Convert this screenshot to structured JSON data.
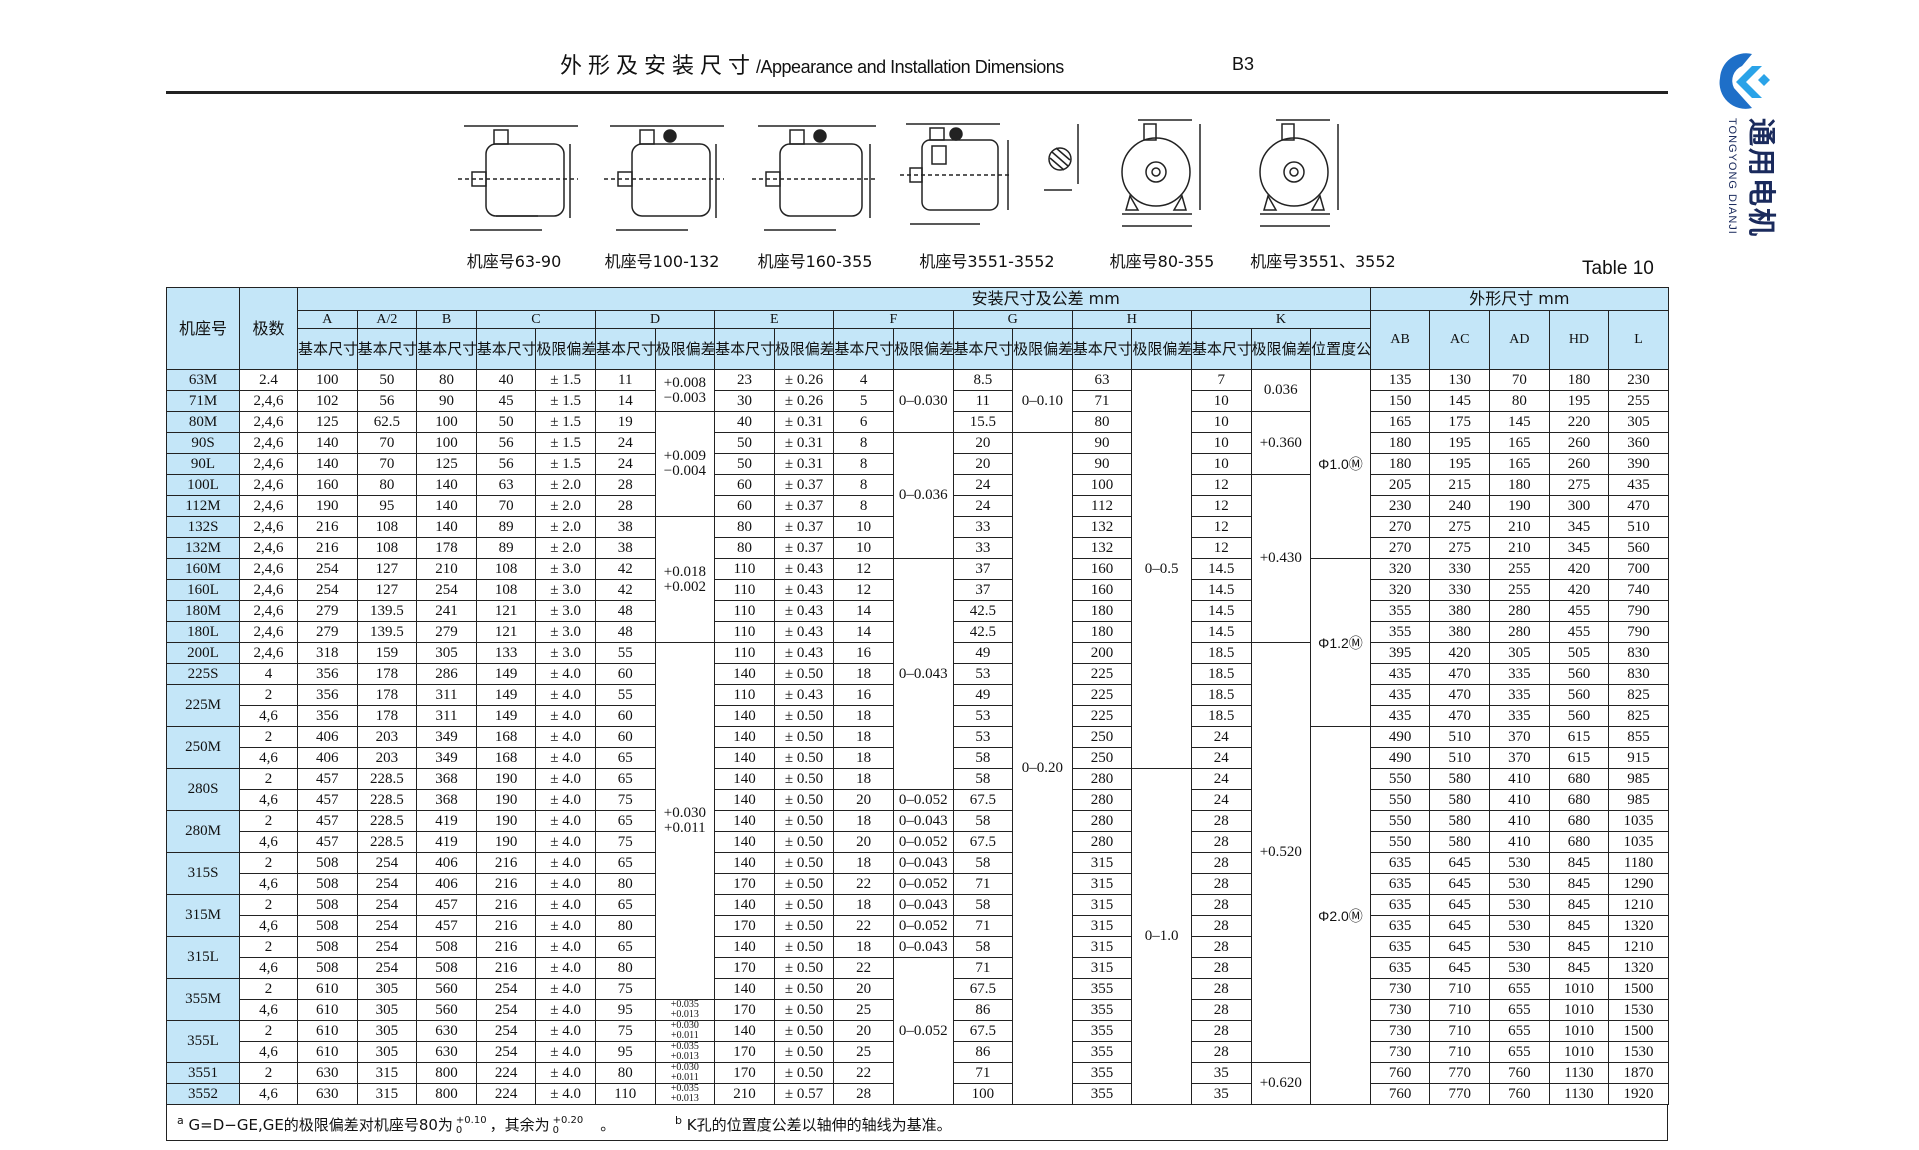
{
  "header": {
    "title_cn": "外形及安装尺寸",
    "title_sep": "/",
    "title_en": "Appearance and Installation Dimensions",
    "mounting": "B3",
    "table_number": "Table 10"
  },
  "logo": {
    "name_cn": "通用电机",
    "name_en": "TONGYONG DIANJI",
    "color": "#1e88d6",
    "icon": "tongyong-logo-icon"
  },
  "drawings": [
    {
      "label": "机座号63-90",
      "view": "side"
    },
    {
      "label": "机座号100-132",
      "view": "side"
    },
    {
      "label": "机座号160-355",
      "view": "side"
    },
    {
      "label": "机座号3551-3552",
      "view": "side"
    },
    {
      "label": "",
      "view": "shaft-section"
    },
    {
      "label": "机座号80-355",
      "view": "front"
    },
    {
      "label": "机座号3551、3552",
      "view": "front"
    }
  ],
  "table": {
    "colors": {
      "header_bg": "#c4e6f8",
      "border": "#222222"
    },
    "col_frame": "机座号",
    "col_poles": "极数",
    "group_install": "安装尺寸及公差  mm",
    "group_outline": "外形尺寸  mm",
    "dims": [
      "A",
      "A/2",
      "B",
      "C",
      "D",
      "E",
      "F",
      "G",
      "H",
      "K"
    ],
    "basic": "基本尺寸",
    "tolerance": "极限偏差",
    "position_tol": "位置度公差",
    "outline_cols": [
      "AB",
      "AC",
      "AD",
      "HD",
      "L"
    ],
    "frames": [
      {
        "label": "63M",
        "span": 1
      },
      {
        "label": "71M",
        "span": 1
      },
      {
        "label": "80M",
        "span": 1
      },
      {
        "label": "90S",
        "span": 1
      },
      {
        "label": "90L",
        "span": 1
      },
      {
        "label": "100L",
        "span": 1
      },
      {
        "label": "112M",
        "span": 1
      },
      {
        "label": "132S",
        "span": 1
      },
      {
        "label": "132M",
        "span": 1
      },
      {
        "label": "160M",
        "span": 1
      },
      {
        "label": "160L",
        "span": 1
      },
      {
        "label": "180M",
        "span": 1
      },
      {
        "label": "180L",
        "span": 1
      },
      {
        "label": "200L",
        "span": 1
      },
      {
        "label": "225S",
        "span": 1
      },
      {
        "label": "225M",
        "span": 2
      },
      {
        "label": "250M",
        "span": 2
      },
      {
        "label": "280S",
        "span": 2
      },
      {
        "label": "280M",
        "span": 2
      },
      {
        "label": "315S",
        "span": 2
      },
      {
        "label": "315M",
        "span": 2
      },
      {
        "label": "315L",
        "span": 2
      },
      {
        "label": "355M",
        "span": 2
      },
      {
        "label": "355L",
        "span": 2
      },
      {
        "label": "3551",
        "span": 1
      },
      {
        "label": "3552",
        "span": 1
      }
    ],
    "row_fields": [
      "poles",
      "A",
      "A/2",
      "B",
      "C",
      "C_tol",
      "D",
      "E",
      "E_tol",
      "F",
      "G",
      "H",
      "K",
      "AB",
      "AC",
      "AD",
      "HD",
      "L"
    ],
    "rows": [
      [
        "2.4",
        "100",
        "50",
        "80",
        "40",
        "± 1.5",
        "11",
        "23",
        "± 0.26",
        "4",
        "8.5",
        "63",
        "7",
        "135",
        "130",
        "70",
        "180",
        "230"
      ],
      [
        "2,4,6",
        "102",
        "56",
        "90",
        "45",
        "± 1.5",
        "14",
        "30",
        "± 0.26",
        "5",
        "11",
        "71",
        "10",
        "150",
        "145",
        "80",
        "195",
        "255"
      ],
      [
        "2,4,6",
        "125",
        "62.5",
        "100",
        "50",
        "± 1.5",
        "19",
        "40",
        "± 0.31",
        "6",
        "15.5",
        "80",
        "10",
        "165",
        "175",
        "145",
        "220",
        "305"
      ],
      [
        "2,4,6",
        "140",
        "70",
        "100",
        "56",
        "± 1.5",
        "24",
        "50",
        "± 0.31",
        "8",
        "20",
        "90",
        "10",
        "180",
        "195",
        "165",
        "260",
        "360"
      ],
      [
        "2,4,6",
        "140",
        "70",
        "125",
        "56",
        "± 1.5",
        "24",
        "50",
        "± 0.31",
        "8",
        "20",
        "90",
        "10",
        "180",
        "195",
        "165",
        "260",
        "390"
      ],
      [
        "2,4,6",
        "160",
        "80",
        "140",
        "63",
        "± 2.0",
        "28",
        "60",
        "± 0.37",
        "8",
        "24",
        "100",
        "12",
        "205",
        "215",
        "180",
        "275",
        "435"
      ],
      [
        "2,4,6",
        "190",
        "95",
        "140",
        "70",
        "± 2.0",
        "28",
        "60",
        "± 0.37",
        "8",
        "24",
        "112",
        "12",
        "230",
        "240",
        "190",
        "300",
        "470"
      ],
      [
        "2,4,6",
        "216",
        "108",
        "140",
        "89",
        "± 2.0",
        "38",
        "80",
        "± 0.37",
        "10",
        "33",
        "132",
        "12",
        "270",
        "275",
        "210",
        "345",
        "510"
      ],
      [
        "2,4,6",
        "216",
        "108",
        "178",
        "89",
        "± 2.0",
        "38",
        "80",
        "± 0.37",
        "10",
        "33",
        "132",
        "12",
        "270",
        "275",
        "210",
        "345",
        "560"
      ],
      [
        "2,4,6",
        "254",
        "127",
        "210",
        "108",
        "± 3.0",
        "42",
        "110",
        "± 0.43",
        "12",
        "37",
        "160",
        "14.5",
        "320",
        "330",
        "255",
        "420",
        "700"
      ],
      [
        "2,4,6",
        "254",
        "127",
        "254",
        "108",
        "± 3.0",
        "42",
        "110",
        "± 0.43",
        "12",
        "37",
        "160",
        "14.5",
        "320",
        "330",
        "255",
        "420",
        "740"
      ],
      [
        "2,4,6",
        "279",
        "139.5",
        "241",
        "121",
        "± 3.0",
        "48",
        "110",
        "± 0.43",
        "14",
        "42.5",
        "180",
        "14.5",
        "355",
        "380",
        "280",
        "455",
        "790"
      ],
      [
        "2,4,6",
        "279",
        "139.5",
        "279",
        "121",
        "± 3.0",
        "48",
        "110",
        "± 0.43",
        "14",
        "42.5",
        "180",
        "14.5",
        "355",
        "380",
        "280",
        "455",
        "790"
      ],
      [
        "2,4,6",
        "318",
        "159",
        "305",
        "133",
        "± 3.0",
        "55",
        "110",
        "± 0.43",
        "16",
        "49",
        "200",
        "18.5",
        "395",
        "420",
        "305",
        "505",
        "830"
      ],
      [
        "4",
        "356",
        "178",
        "286",
        "149",
        "± 4.0",
        "60",
        "140",
        "± 0.50",
        "18",
        "53",
        "225",
        "18.5",
        "435",
        "470",
        "335",
        "560",
        "830"
      ],
      [
        "2",
        "356",
        "178",
        "311",
        "149",
        "± 4.0",
        "55",
        "110",
        "± 0.43",
        "16",
        "49",
        "225",
        "18.5",
        "435",
        "470",
        "335",
        "560",
        "825"
      ],
      [
        "4,6",
        "356",
        "178",
        "311",
        "149",
        "± 4.0",
        "60",
        "140",
        "± 0.50",
        "18",
        "53",
        "225",
        "18.5",
        "435",
        "470",
        "335",
        "560",
        "825"
      ],
      [
        "2",
        "406",
        "203",
        "349",
        "168",
        "± 4.0",
        "60",
        "140",
        "± 0.50",
        "18",
        "53",
        "250",
        "24",
        "490",
        "510",
        "370",
        "615",
        "855"
      ],
      [
        "4,6",
        "406",
        "203",
        "349",
        "168",
        "± 4.0",
        "65",
        "140",
        "± 0.50",
        "18",
        "58",
        "250",
        "24",
        "490",
        "510",
        "370",
        "615",
        "915"
      ],
      [
        "2",
        "457",
        "228.5",
        "368",
        "190",
        "± 4.0",
        "65",
        "140",
        "± 0.50",
        "18",
        "58",
        "280",
        "24",
        "550",
        "580",
        "410",
        "680",
        "985"
      ],
      [
        "4,6",
        "457",
        "228.5",
        "368",
        "190",
        "± 4.0",
        "75",
        "140",
        "± 0.50",
        "20",
        "67.5",
        "280",
        "24",
        "550",
        "580",
        "410",
        "680",
        "985"
      ],
      [
        "2",
        "457",
        "228.5",
        "419",
        "190",
        "± 4.0",
        "65",
        "140",
        "± 0.50",
        "18",
        "58",
        "280",
        "28",
        "550",
        "580",
        "410",
        "680",
        "1035"
      ],
      [
        "4,6",
        "457",
        "228.5",
        "419",
        "190",
        "± 4.0",
        "75",
        "140",
        "± 0.50",
        "20",
        "67.5",
        "280",
        "28",
        "550",
        "580",
        "410",
        "680",
        "1035"
      ],
      [
        "2",
        "508",
        "254",
        "406",
        "216",
        "± 4.0",
        "65",
        "140",
        "± 0.50",
        "18",
        "58",
        "315",
        "28",
        "635",
        "645",
        "530",
        "845",
        "1180"
      ],
      [
        "4,6",
        "508",
        "254",
        "406",
        "216",
        "± 4.0",
        "80",
        "170",
        "± 0.50",
        "22",
        "71",
        "315",
        "28",
        "635",
        "645",
        "530",
        "845",
        "1290"
      ],
      [
        "2",
        "508",
        "254",
        "457",
        "216",
        "± 4.0",
        "65",
        "140",
        "± 0.50",
        "18",
        "58",
        "315",
        "28",
        "635",
        "645",
        "530",
        "845",
        "1210"
      ],
      [
        "4,6",
        "508",
        "254",
        "457",
        "216",
        "± 4.0",
        "80",
        "170",
        "± 0.50",
        "22",
        "71",
        "315",
        "28",
        "635",
        "645",
        "530",
        "845",
        "1320"
      ],
      [
        "2",
        "508",
        "254",
        "508",
        "216",
        "± 4.0",
        "65",
        "140",
        "± 0.50",
        "18",
        "58",
        "315",
        "28",
        "635",
        "645",
        "530",
        "845",
        "1210"
      ],
      [
        "4,6",
        "508",
        "254",
        "508",
        "216",
        "± 4.0",
        "80",
        "170",
        "± 0.50",
        "22",
        "71",
        "315",
        "28",
        "635",
        "645",
        "530",
        "845",
        "1320"
      ],
      [
        "2",
        "610",
        "305",
        "560",
        "254",
        "± 4.0",
        "75",
        "140",
        "± 0.50",
        "20",
        "67.5",
        "355",
        "28",
        "730",
        "710",
        "655",
        "1010",
        "1500"
      ],
      [
        "4,6",
        "610",
        "305",
        "560",
        "254",
        "± 4.0",
        "95",
        "170",
        "± 0.50",
        "25",
        "86",
        "355",
        "28",
        "730",
        "710",
        "655",
        "1010",
        "1530"
      ],
      [
        "2",
        "610",
        "305",
        "630",
        "254",
        "± 4.0",
        "75",
        "140",
        "± 0.50",
        "20",
        "67.5",
        "355",
        "28",
        "730",
        "710",
        "655",
        "1010",
        "1500"
      ],
      [
        "4,6",
        "610",
        "305",
        "630",
        "254",
        "± 4.0",
        "95",
        "170",
        "± 0.50",
        "25",
        "86",
        "355",
        "28",
        "730",
        "710",
        "655",
        "1010",
        "1530"
      ],
      [
        "2",
        "630",
        "315",
        "800",
        "224",
        "± 4.0",
        "80",
        "170",
        "± 0.50",
        "22",
        "71",
        "355",
        "35",
        "760",
        "770",
        "760",
        "1130",
        "1870"
      ],
      [
        "4,6",
        "630",
        "315",
        "800",
        "224",
        "± 4.0",
        "110",
        "210",
        "± 0.57",
        "28",
        "100",
        "355",
        "35",
        "760",
        "770",
        "760",
        "1130",
        "1920"
      ]
    ],
    "D_tol": [
      {
        "lines": [
          "+0.008",
          "−0.003"
        ],
        "span": 2
      },
      {
        "lines": [
          "+0.009",
          "−0.004"
        ],
        "span": 5
      },
      {
        "lines": [
          "+0.018",
          "+0.002"
        ],
        "span": 6
      },
      {
        "lines": [
          "+0.030",
          "+0.011"
        ],
        "span": 17
      },
      {
        "lines": [
          "+0.035",
          "+0.013"
        ],
        "span": 1,
        "small": true
      },
      {
        "lines": [
          "+0.030",
          "+0.011"
        ],
        "span": 1,
        "small": true
      },
      {
        "lines": [
          "+0.035",
          "+0.013"
        ],
        "span": 1,
        "small": true
      },
      {
        "lines": [
          "+0.030",
          "+0.011"
        ],
        "span": 1,
        "small": true
      },
      {
        "lines": [
          "+0.035",
          "+0.013"
        ],
        "span": 1,
        "small": true
      }
    ],
    "F_tol": [
      {
        "value": "0–0.030",
        "span": 3
      },
      {
        "value": "0–0.036",
        "span": 6
      },
      {
        "value": "0–0.043",
        "span": 11
      },
      {
        "value": "0–0.052",
        "span": 1
      },
      {
        "value": "0–0.043",
        "span": 1
      },
      {
        "value": "0–0.052",
        "span": 1
      },
      {
        "value": "0–0.043",
        "span": 1
      },
      {
        "value": "0–0.052",
        "span": 1
      },
      {
        "value": "0–0.043",
        "span": 1
      },
      {
        "value": "0–0.052",
        "span": 1
      },
      {
        "value": "0–0.043",
        "span": 1
      },
      {
        "value": "0–0.052",
        "span": 7
      }
    ],
    "G_tol": [
      {
        "value": "0–0.10",
        "span": 3
      },
      {
        "value": "0–0.20",
        "span": 32
      }
    ],
    "H_tol": [
      {
        "value": "0–0.5",
        "span": 19
      },
      {
        "value": "0–1.0",
        "span": 16
      }
    ],
    "K_tol": [
      {
        "value": "0.036",
        "span": 2
      },
      {
        "value": "+0.360",
        "span": 3
      },
      {
        "value": "+0.430",
        "span": 8
      },
      {
        "value": "+0.520",
        "span": 20
      },
      {
        "value": "+0.620",
        "span": 2
      }
    ],
    "K_pos": [
      {
        "value": "Φ1.0Ⓜ",
        "span": 9
      },
      {
        "value": "Φ1.2Ⓜ",
        "span": 8
      },
      {
        "value": "Φ2.0Ⓜ",
        "span": 18
      }
    ]
  },
  "footer": {
    "note_a_mark": "a",
    "note_a_text": "G=D−GE,GE的极限偏差对机座号80为",
    "note_a_frac1": [
      "+0.10",
      "0"
    ],
    "note_a_mid": "，其余为",
    "note_a_frac2": [
      "+0.20",
      "0"
    ],
    "note_a_end": "。",
    "note_b_mark": "b",
    "note_b_text": "K孔的位置度公差以轴伸的轴线为基准。"
  }
}
